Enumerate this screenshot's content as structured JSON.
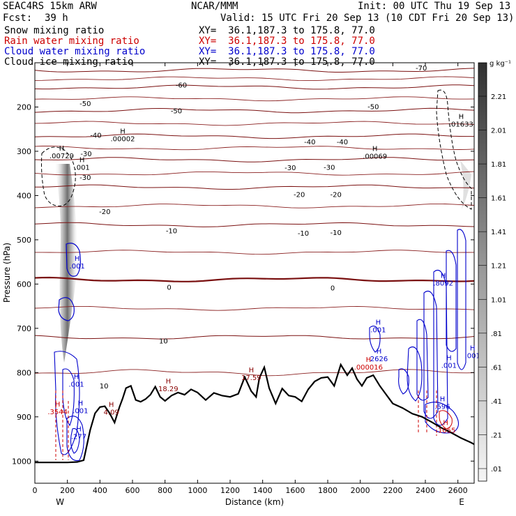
{
  "header": {
    "model": "SEAC4RS 15km ARW",
    "org": "NCAR/MMM",
    "init": "Init: 00 UTC Thu 19 Sep 13",
    "fcst_label": "Fcst:",
    "fcst_value": "39 h",
    "valid": "Valid: 15 UTC Fri 20 Sep 13 (10 CDT Fri 20 Sep 13)"
  },
  "fields": [
    {
      "name": "Snow mixing ratio",
      "xy": "XY=  36.1,187.3 to 175.8, 77.0",
      "color": "#000000"
    },
    {
      "name": "Rain water mixing ratio",
      "xy": "XY=  36.1,187.3 to 175.8, 77.0",
      "color": "#cc0000"
    },
    {
      "name": "Cloud water mixing ratio",
      "xy": "XY=  36.1,187.3 to 175.8, 77.0",
      "color": "#0000cc"
    },
    {
      "name": "Cloud ice mixing ratio",
      "xy": "XY=  36.1,187.3 to 175.8, 77.0",
      "color": "#000000"
    }
  ],
  "colorbar": {
    "unit": "g kg⁻¹",
    "ticks": [
      "2.21",
      "2.01",
      "1.81",
      "1.61",
      "1.41",
      "1.21",
      "1.01",
      ".81",
      ".61",
      ".41",
      ".21",
      ".01"
    ]
  },
  "chart_data": {
    "type": "contour cross-section",
    "xlabel": "Distance (km)",
    "ylabel": "Pressure (hPa)",
    "xlim": [
      0,
      2700
    ],
    "ylim": [
      1050,
      100
    ],
    "x_ticks": [
      0,
      200,
      400,
      600,
      800,
      1000,
      1200,
      1400,
      1600,
      1800,
      2000,
      2200,
      2400,
      2600
    ],
    "y_ticks": [
      200,
      300,
      400,
      500,
      600,
      700,
      800,
      900,
      1000
    ],
    "x_endpoints": {
      "left": "W",
      "right": "E"
    },
    "temperature_isotherms_C": [
      {
        "level": -70,
        "pressure_hpa": 117
      },
      {
        "level": -60,
        "pressure_hpa": 155
      },
      {
        "level": -50,
        "pressure_hpa": 208
      },
      {
        "level": -40,
        "pressure_hpa": 266
      },
      {
        "level": -30,
        "pressure_hpa": 319
      },
      {
        "level": -20,
        "pressure_hpa": 381
      },
      {
        "level": -10,
        "pressure_hpa": 466
      },
      {
        "level": 0,
        "pressure_hpa": 590
      },
      {
        "level": 10,
        "pressure_hpa": 720
      }
    ],
    "contour_labels": {
      "isotherms": [
        {
          "text": "-70",
          "x": 2375,
          "p": 117
        },
        {
          "text": "-60",
          "x": 900,
          "p": 156
        },
        {
          "text": "-50",
          "x": 310,
          "p": 198
        },
        {
          "text": "-50",
          "x": 870,
          "p": 214
        },
        {
          "text": "-50",
          "x": 2080,
          "p": 205
        },
        {
          "text": "-40",
          "x": 375,
          "p": 269
        },
        {
          "text": "-40",
          "x": 1690,
          "p": 284
        },
        {
          "text": "-40",
          "x": 1890,
          "p": 284
        },
        {
          "text": "-30",
          "x": 315,
          "p": 311
        },
        {
          "text": "-30",
          "x": 1570,
          "p": 343
        },
        {
          "text": "-30",
          "x": 1810,
          "p": 342
        },
        {
          "text": "-30",
          "x": 310,
          "p": 365
        },
        {
          "text": "-20",
          "x": 430,
          "p": 442
        },
        {
          "text": "-20",
          "x": 1625,
          "p": 403
        },
        {
          "text": "-20",
          "x": 1850,
          "p": 403
        },
        {
          "text": "-10",
          "x": 840,
          "p": 485
        },
        {
          "text": "-10",
          "x": 1650,
          "p": 491
        },
        {
          "text": "-10",
          "x": 1850,
          "p": 489
        },
        {
          "text": "0",
          "x": 825,
          "p": 613
        },
        {
          "text": "0",
          "x": 1830,
          "p": 614
        },
        {
          "text": "10",
          "x": 790,
          "p": 734
        },
        {
          "text": "10",
          "x": 425,
          "p": 836
        }
      ],
      "maxima": [
        {
          "text": ".00729",
          "x": 165,
          "p": 316,
          "color": "#000000"
        },
        {
          "text": ".00002",
          "x": 540,
          "p": 277,
          "color": "#000000"
        },
        {
          "text": ".00069",
          "x": 2090,
          "p": 317,
          "color": "#000000"
        },
        {
          "text": ".01633",
          "x": 2620,
          "p": 244,
          "color": "#000000"
        },
        {
          "text": ".001",
          "x": 290,
          "p": 342,
          "color": "#000000"
        },
        {
          "text": "18.29",
          "x": 820,
          "p": 842,
          "color": "#880000"
        },
        {
          "text": "17.59",
          "x": 1330,
          "p": 817,
          "color": "#880000"
        },
        {
          "text": "4.09",
          "x": 470,
          "p": 895,
          "color": "#880000"
        },
        {
          "text": ".3544",
          "x": 140,
          "p": 894,
          "color": "#cc0000"
        },
        {
          "text": ".000016",
          "x": 2050,
          "p": 793,
          "color": "#cc0000"
        },
        {
          "text": ".001",
          "x": 260,
          "p": 565,
          "color": "#0000cc"
        },
        {
          "text": ".001",
          "x": 255,
          "p": 832,
          "color": "#0000cc"
        },
        {
          "text": ".001",
          "x": 280,
          "p": 892,
          "color": "#0000cc"
        },
        {
          "text": ".277",
          "x": 270,
          "p": 950,
          "color": "#0000cc"
        },
        {
          "text": ".001",
          "x": 2110,
          "p": 709,
          "color": "#0000cc"
        },
        {
          "text": "2626",
          "x": 2115,
          "p": 774,
          "color": "#0000cc"
        },
        {
          "text": ".8092",
          "x": 2510,
          "p": 603,
          "color": "#0000cc"
        },
        {
          "text": ".001",
          "x": 2545,
          "p": 789,
          "color": "#0000cc"
        },
        {
          "text": ".001",
          "x": 2690,
          "p": 767,
          "color": "#0000cc"
        },
        {
          "text": ".596",
          "x": 2505,
          "p": 882,
          "color": "#0000cc"
        },
        {
          "text": ".1055",
          "x": 2525,
          "p": 936,
          "color": "#cc0000"
        }
      ]
    },
    "terrain_surface_pressure": {
      "x": [
        0,
        120,
        200,
        260,
        300,
        340,
        370,
        400,
        430,
        460,
        490,
        520,
        540,
        560,
        590,
        620,
        650,
        680,
        710,
        740,
        770,
        800,
        840,
        880,
        920,
        960,
        1000,
        1050,
        1100,
        1150,
        1200,
        1250,
        1290,
        1330,
        1360,
        1380,
        1410,
        1440,
        1480,
        1520,
        1560,
        1600,
        1640,
        1680,
        1720,
        1760,
        1800,
        1840,
        1880,
        1920,
        1950,
        1980,
        2010,
        2040,
        2080,
        2120,
        2160,
        2200,
        2260,
        2320,
        2380,
        2440,
        2500,
        2560,
        2620,
        2680,
        2700
      ],
      "p": [
        1003,
        1003,
        1003,
        1002,
        998,
        930,
        892,
        878,
        876,
        892,
        913,
        878,
        858,
        835,
        830,
        862,
        866,
        860,
        850,
        832,
        855,
        864,
        852,
        845,
        850,
        838,
        845,
        862,
        846,
        852,
        855,
        848,
        810,
        842,
        855,
        812,
        788,
        835,
        870,
        836,
        852,
        855,
        865,
        838,
        820,
        812,
        810,
        830,
        782,
        806,
        790,
        815,
        830,
        812,
        806,
        830,
        850,
        870,
        880,
        893,
        900,
        912,
        925,
        936,
        948,
        958,
        962
      ]
    }
  }
}
